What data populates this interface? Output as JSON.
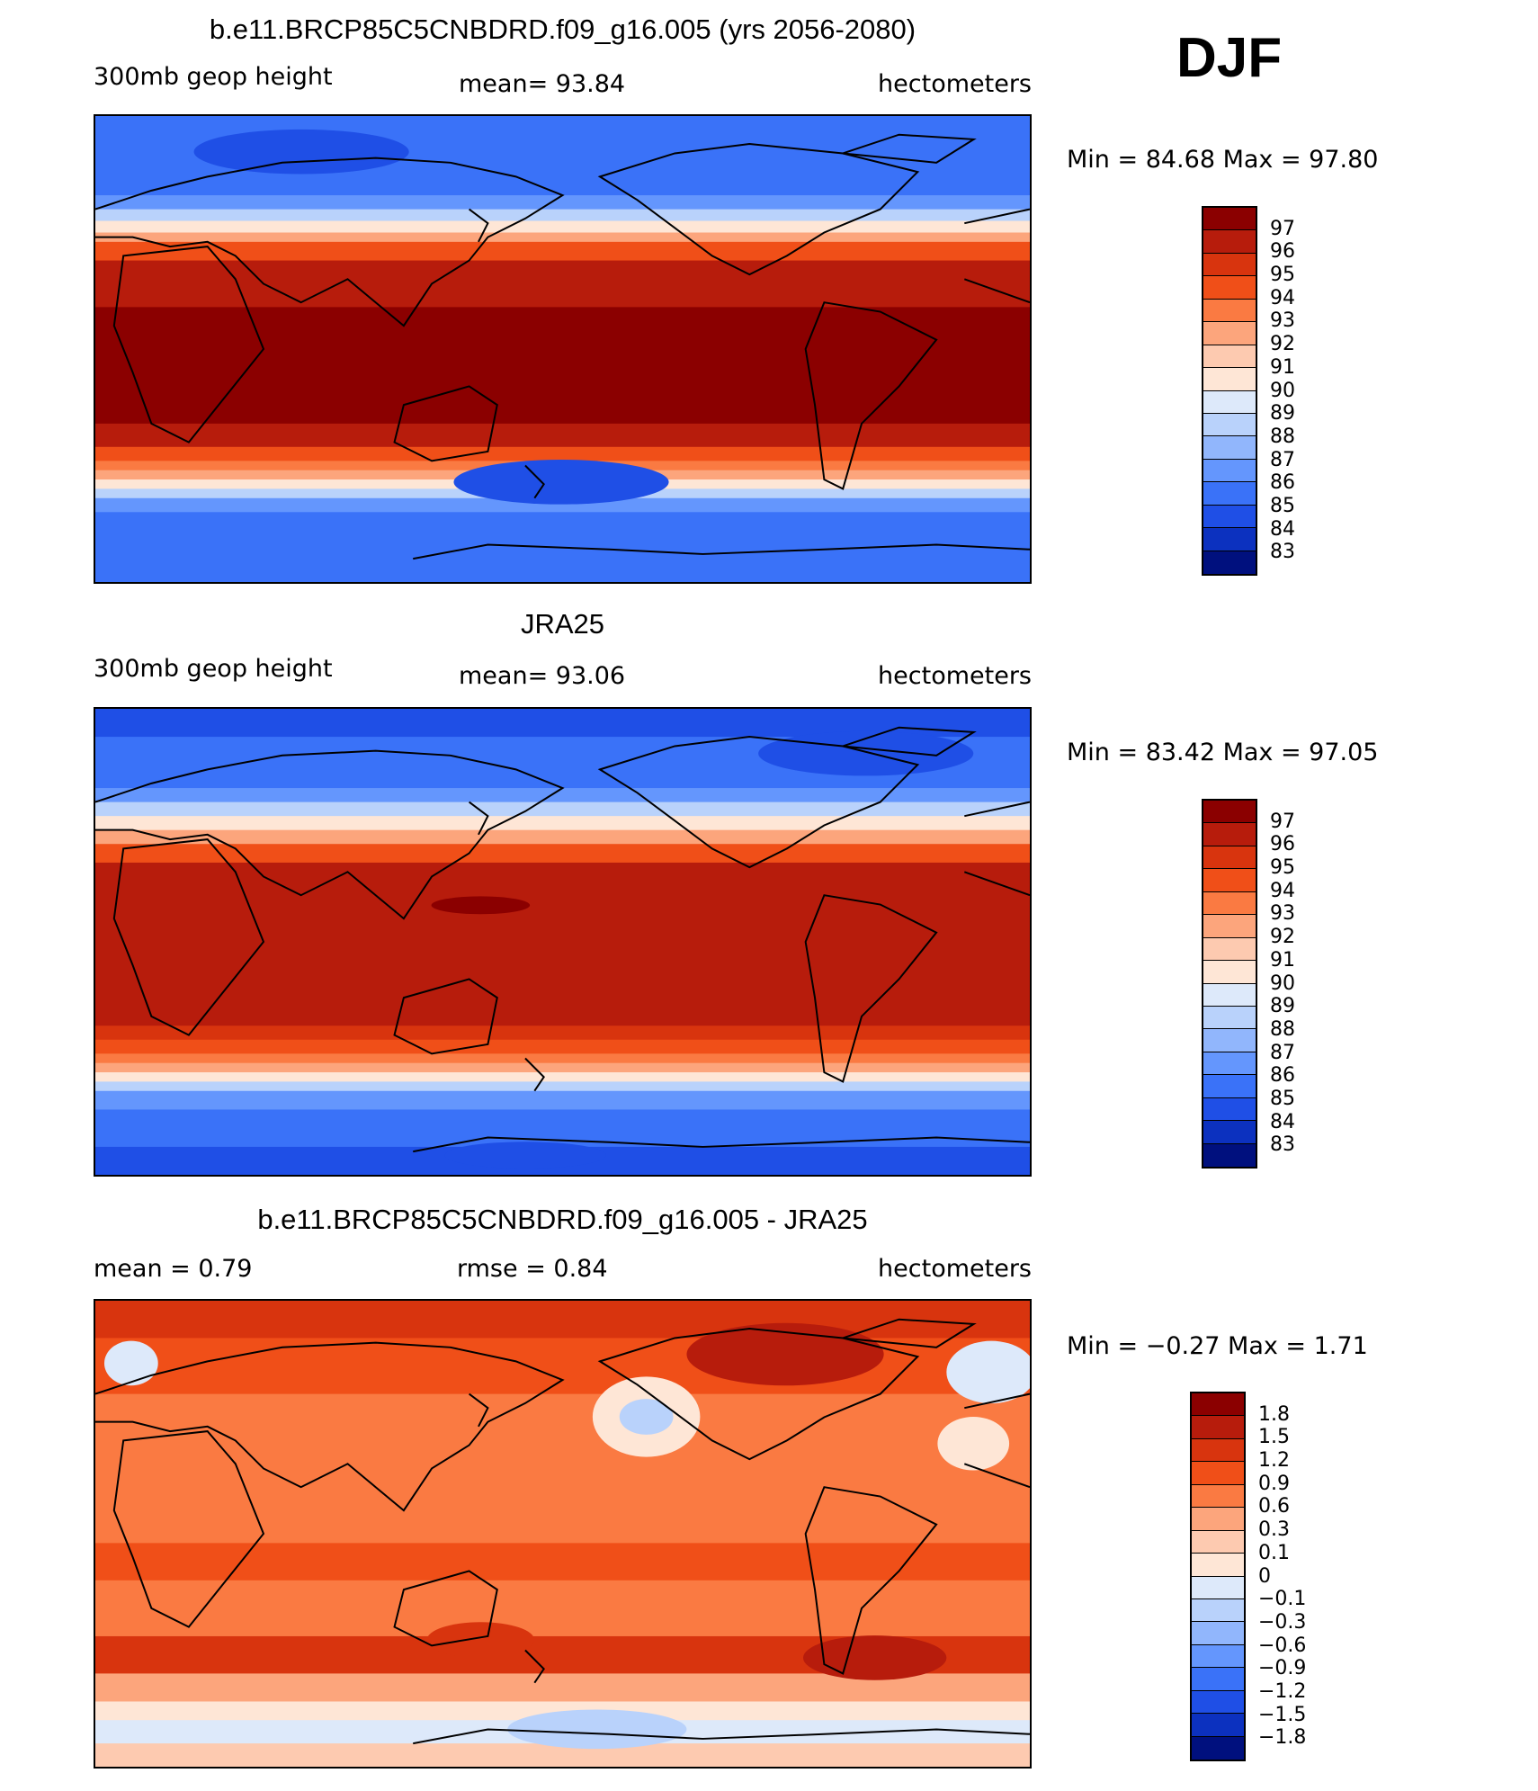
{
  "season": "DJF",
  "panels": [
    {
      "title": "b.e11.BRCP85C5CNBDRD.f09_g16.005 (yrs 2056-2080)",
      "left_label": "300mb geop height",
      "stat": "mean=   93.84",
      "units": "hectometers",
      "minmax": "Min =   84.68  Max =    97.80",
      "colorbar_labels": [
        "97",
        "96",
        "95",
        "94",
        "93",
        "92",
        "91",
        "90",
        "89",
        "88",
        "87",
        "86",
        "85",
        "84",
        "83"
      ],
      "colorbar_colors": [
        "#8b0000",
        "#b71c0c",
        "#d8340e",
        "#f04f18",
        "#fa7a42",
        "#fca57c",
        "#fdcab0",
        "#fee6d6",
        "#dde9fa",
        "#b9d2fb",
        "#91b6fc",
        "#6496fd",
        "#3a72f8",
        "#1f4fe6",
        "#0c31bf",
        "#00107e"
      ],
      "map_variant": "model"
    },
    {
      "title": "JRA25",
      "left_label": "300mb geop height",
      "stat": "mean=   93.06",
      "units": "hectometers",
      "minmax": "Min =   83.42  Max =    97.05",
      "colorbar_labels": [
        "97",
        "96",
        "95",
        "94",
        "93",
        "92",
        "91",
        "90",
        "89",
        "88",
        "87",
        "86",
        "85",
        "84",
        "83"
      ],
      "colorbar_colors": [
        "#8b0000",
        "#b71c0c",
        "#d8340e",
        "#f04f18",
        "#fa7a42",
        "#fca57c",
        "#fdcab0",
        "#fee6d6",
        "#dde9fa",
        "#b9d2fb",
        "#91b6fc",
        "#6496fd",
        "#3a72f8",
        "#1f4fe6",
        "#0c31bf",
        "#00107e"
      ],
      "map_variant": "obs"
    },
    {
      "title": "b.e11.BRCP85C5CNBDRD.f09_g16.005 - JRA25",
      "left_label": "mean =     0.79",
      "stat": "rmse =     0.84",
      "units": "hectometers",
      "minmax": "Min =  −0.27  Max =     1.71",
      "colorbar_labels": [
        "1.8",
        "1.5",
        "1.2",
        "0.9",
        "0.6",
        "0.3",
        "0.1",
        "0",
        "−0.1",
        "−0.3",
        "−0.6",
        "−0.9",
        "−1.2",
        "−1.5",
        "−1.8"
      ],
      "colorbar_colors": [
        "#8b0000",
        "#b71c0c",
        "#d8340e",
        "#f04f18",
        "#fa7a42",
        "#fca57c",
        "#fdcab0",
        "#fee6d6",
        "#dde9fa",
        "#b9d2fb",
        "#91b6fc",
        "#6496fd",
        "#3a72f8",
        "#1f4fe6",
        "#0c31bf",
        "#00107e"
      ],
      "map_variant": "diff"
    }
  ]
}
